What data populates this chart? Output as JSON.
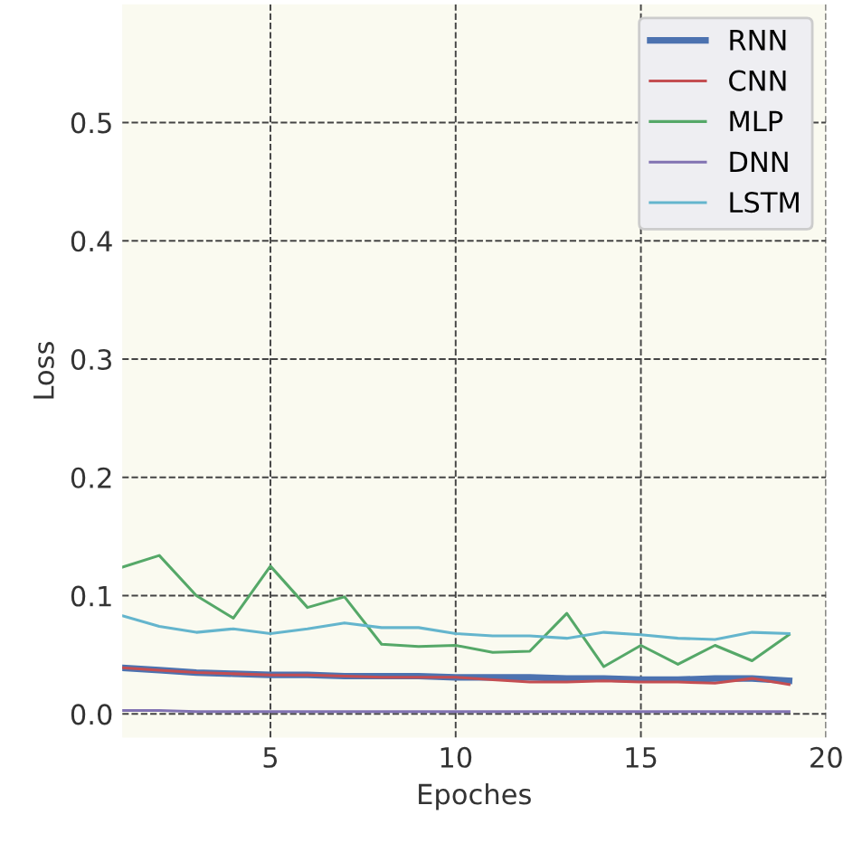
{
  "chart_data": {
    "type": "line",
    "xlabel": "Epoches",
    "ylabel": "Loss",
    "x": [
      1,
      2,
      3,
      4,
      5,
      6,
      7,
      8,
      9,
      10,
      11,
      12,
      13,
      14,
      15,
      16,
      17,
      18,
      19
    ],
    "series": [
      {
        "name": "RNN",
        "color": "#4c72b0",
        "values": [
          0.039,
          0.037,
          0.035,
          0.034,
          0.033,
          0.033,
          0.032,
          0.032,
          0.032,
          0.031,
          0.031,
          0.031,
          0.03,
          0.03,
          0.029,
          0.029,
          0.03,
          0.03,
          0.028
        ]
      },
      {
        "name": "CNN",
        "color": "#c44e52",
        "values": [
          0.039,
          0.037,
          0.035,
          0.034,
          0.033,
          0.033,
          0.032,
          0.031,
          0.031,
          0.031,
          0.029,
          0.027,
          0.027,
          0.028,
          0.027,
          0.027,
          0.026,
          0.03,
          0.025
        ]
      },
      {
        "name": "MLP",
        "color": "#55a868",
        "values": [
          0.124,
          0.134,
          0.1,
          0.081,
          0.125,
          0.09,
          0.099,
          0.059,
          0.057,
          0.058,
          0.052,
          0.053,
          0.085,
          0.04,
          0.058,
          0.042,
          0.058,
          0.045,
          0.067
        ]
      },
      {
        "name": "DNN",
        "color": "#8172b2",
        "values": [
          0.003,
          0.003,
          0.002,
          0.002,
          0.002,
          0.002,
          0.002,
          0.002,
          0.002,
          0.002,
          0.002,
          0.002,
          0.002,
          0.002,
          0.002,
          0.002,
          0.002,
          0.002,
          0.002
        ]
      },
      {
        "name": "LSTM",
        "color": "#64b5cd",
        "values": [
          0.083,
          0.074,
          0.069,
          0.072,
          0.068,
          0.072,
          0.077,
          0.073,
          0.073,
          0.068,
          0.066,
          0.066,
          0.064,
          0.069,
          0.067,
          0.064,
          0.063,
          0.069,
          0.068
        ]
      }
    ],
    "xlim": [
      1,
      20
    ],
    "xticks": [
      5,
      10,
      15,
      20
    ],
    "ylim": [
      -0.02,
      0.6
    ],
    "yticks": [
      {
        "value": 0,
        "label": "0.0"
      },
      0.1,
      0.2,
      0.3,
      0.4,
      0.5
    ],
    "grid": true,
    "legend": "top right",
    "marker": "none",
    "line_style": "solid"
  }
}
